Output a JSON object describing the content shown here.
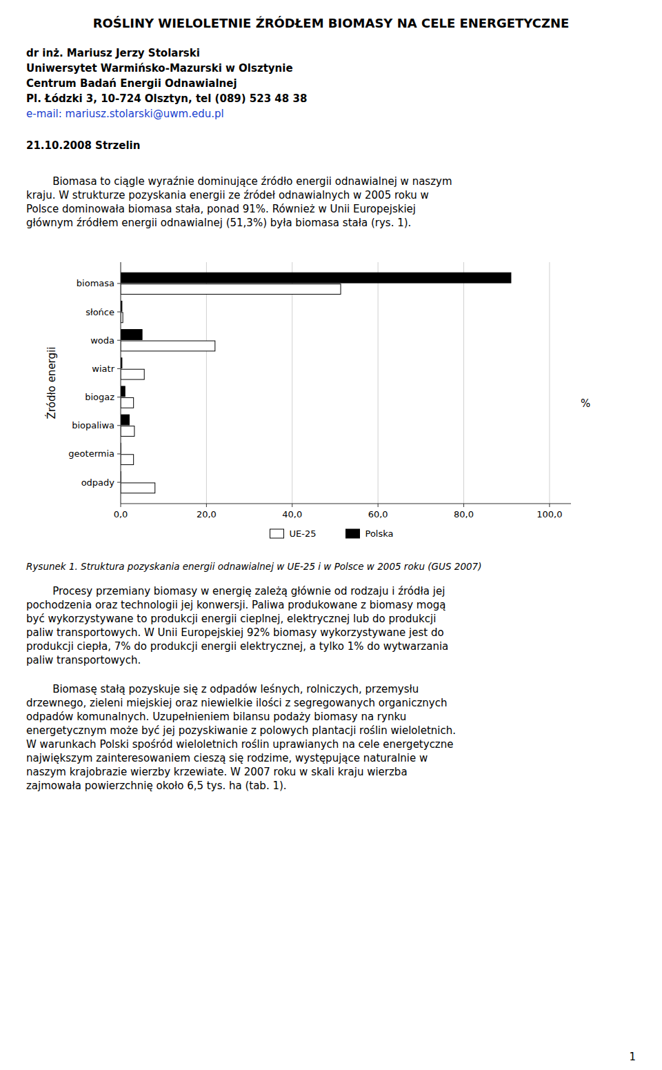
{
  "page": {
    "title": "ROŚLINY WIELOLETNIE ŹRÓDŁEM BIOMASY NA CELE ENERGETYCZNE",
    "author_lines": [
      "dr inż. Mariusz Jerzy Stolarski",
      "Uniwersytet Warmińsko-Mazurski w Olsztynie",
      "Centrum Badań Energii Odnawialnej",
      "Pl. Łódzki 3, 10-724 Olsztyn, tel (089) 523 48 38",
      "e-mail: mariusz.stolarski@uwm.edu.pl"
    ],
    "date_line": "21.10.2008 Strzelin",
    "body_text1_lines": [
      "        Biomasa to ciągle wyraźnie dominujące źródło energii odnawialnej w naszym",
      "kraju. W strukturze pozyskania energii ze źródeł odnawialnych w 2005 roku w",
      "Polsce dominowała biomasa stała, ponad 91%. Również w Unii Europejskiej",
      "głównym źródłem energii odnawialnej (51,3%) była biomasa stała (rys. 1)."
    ],
    "caption": "Rysunek 1. Struktura pozyskania energii odnawialnej w UE-25 i w Polsce w 2005 roku (GUS 2007)",
    "body_text2_lines": [
      "        Procesy przemiany biomasy w energię zależą głównie od rodzaju i źródła jej",
      "pochodzenia oraz technologii jej konwersji. Paliwa produkowane z biomasy mogą",
      "być wykorzystywane to produkcji energii cieplnej, elektrycznej lub do produkcji",
      "paliw transportowych. W Unii Europejskiej 92% biomasy wykorzystywane jest do",
      "produkcji ciepła, 7% do produkcji energii elektrycznej, a tylko 1% do wytwarzania",
      "paliw transportowych."
    ],
    "body_text3_lines": [
      "        Biomasę stałą pozyskuje się z odpadów leśnych, rolniczych, przemysłu",
      "drzewnego, zieleni miejskiej oraz niewielkie ilości z segregowanych organicznych",
      "odpadów komunalnych. Uzupełnieniem bilansu podaży biomasy na rynku",
      "energetycznym może być jej pozyskiwanie z polowych plantacji roślin wieloletnich.",
      "W warunkach Polski spośród wieloletnich roślin uprawianych na cele energetyczne",
      "największym zainteresowaniem cieszą się rodzime, występujące naturalnie w",
      "naszym krajobrazie wierzby krzewiate. W 2007 roku w skali kraju wierzba",
      "zajmowała powierzchnię około 6,5 tys. ha (tab. 1)."
    ],
    "page_number": "1"
  },
  "chart_data": {
    "type": "bar",
    "orientation": "horizontal",
    "categories": [
      "odpady",
      "geotermia",
      "biopaliwa",
      "biogaz",
      "wiatr",
      "woda",
      "słońce",
      "biomasa"
    ],
    "series": [
      {
        "name": "UE-25",
        "color": "#ffffff",
        "values": [
          8.0,
          3.0,
          3.2,
          3.0,
          5.5,
          22.0,
          0.5,
          51.3
        ]
      },
      {
        "name": "Polska",
        "color": "#000000",
        "values": [
          0.05,
          0.05,
          2.0,
          1.0,
          0.3,
          5.0,
          0.3,
          91.0
        ]
      }
    ],
    "ylabel": "Źródło energii",
    "xlabel": "%",
    "xlim": [
      0,
      105
    ],
    "xticks": [
      {
        "value": 0,
        "label": "0,0"
      },
      {
        "value": 20,
        "label": "20,0"
      },
      {
        "value": 40,
        "label": "40,0"
      },
      {
        "value": 60,
        "label": "60,0"
      },
      {
        "value": 80,
        "label": "80,0"
      },
      {
        "value": 100,
        "label": "100,0"
      }
    ],
    "grid": true,
    "legend": "bottom"
  }
}
